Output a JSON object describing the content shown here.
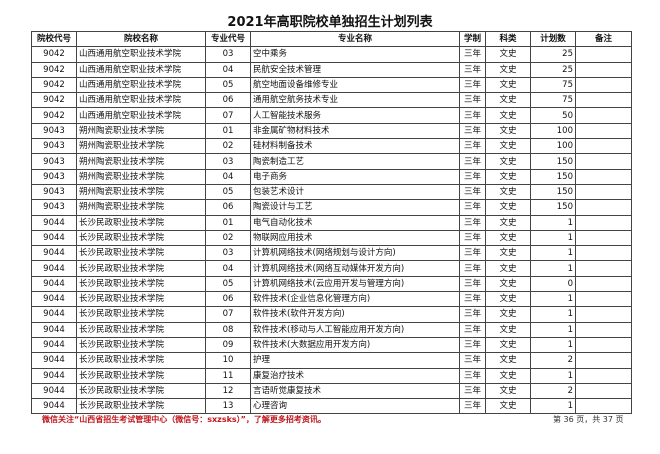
{
  "title": "2021年高职院校单独招生计划列表",
  "headers": [
    "院校代号",
    "院校名称",
    "专业代号",
    "专业名称",
    "学制",
    "科类",
    "计划数",
    "备注"
  ],
  "rows": [
    [
      "9042",
      "山西通用航空职业技术学院",
      "03",
      "空中乘务",
      "三年",
      "文史",
      "25",
      ""
    ],
    [
      "9042",
      "山西通用航空职业技术学院",
      "04",
      "民航安全技术管理",
      "三年",
      "文史",
      "25",
      ""
    ],
    [
      "9042",
      "山西通用航空职业技术学院",
      "05",
      "航空地面设备维修专业",
      "三年",
      "文史",
      "75",
      ""
    ],
    [
      "9042",
      "山西通用航空职业技术学院",
      "06",
      "通用航空航务技术专业",
      "三年",
      "文史",
      "75",
      ""
    ],
    [
      "9042",
      "山西通用航空职业技术学院",
      "07",
      "人工智能技术服务",
      "三年",
      "文史",
      "50",
      ""
    ],
    [
      "9043",
      "朔州陶瓷职业技术学院",
      "01",
      "非金属矿物材料技术",
      "三年",
      "文史",
      "100",
      ""
    ],
    [
      "9043",
      "朔州陶瓷职业技术学院",
      "02",
      "硅材料制备技术",
      "三年",
      "文史",
      "100",
      ""
    ],
    [
      "9043",
      "朔州陶瓷职业技术学院",
      "03",
      "陶瓷制造工艺",
      "三年",
      "文史",
      "150",
      ""
    ],
    [
      "9043",
      "朔州陶瓷职业技术学院",
      "04",
      "电子商务",
      "三年",
      "文史",
      "150",
      ""
    ],
    [
      "9043",
      "朔州陶瓷职业技术学院",
      "05",
      "包装艺术设计",
      "三年",
      "文史",
      "150",
      ""
    ],
    [
      "9043",
      "朔州陶瓷职业技术学院",
      "06",
      "陶瓷设计与工艺",
      "三年",
      "文史",
      "150",
      ""
    ],
    [
      "9044",
      "长沙民政职业技术学院",
      "01",
      "电气自动化技术",
      "三年",
      "文史",
      "1",
      ""
    ],
    [
      "9044",
      "长沙民政职业技术学院",
      "02",
      "物联网应用技术",
      "三年",
      "文史",
      "1",
      ""
    ],
    [
      "9044",
      "长沙民政职业技术学院",
      "03",
      "计算机网络技术(网络规划与设计方向)",
      "三年",
      "文史",
      "1",
      ""
    ],
    [
      "9044",
      "长沙民政职业技术学院",
      "04",
      "计算机网络技术(网络互动媒体开发方向)",
      "三年",
      "文史",
      "1",
      ""
    ],
    [
      "9044",
      "长沙民政职业技术学院",
      "05",
      "计算机网络技术(云应用开发与管理方向)",
      "三年",
      "文史",
      "0",
      ""
    ],
    [
      "9044",
      "长沙民政职业技术学院",
      "06",
      "软件技术(企业信息化管理方向)",
      "三年",
      "文史",
      "1",
      ""
    ],
    [
      "9044",
      "长沙民政职业技术学院",
      "07",
      "软件技术(软件开发方向)",
      "三年",
      "文史",
      "1",
      ""
    ],
    [
      "9044",
      "长沙民政职业技术学院",
      "08",
      "软件技术(移动与人工智能应用开发方向)",
      "三年",
      "文史",
      "1",
      ""
    ],
    [
      "9044",
      "长沙民政职业技术学院",
      "09",
      "软件技术(大数据应用开发方向)",
      "三年",
      "文史",
      "1",
      ""
    ],
    [
      "9044",
      "长沙民政职业技术学院",
      "10",
      "护理",
      "三年",
      "文史",
      "2",
      ""
    ],
    [
      "9044",
      "长沙民政职业技术学院",
      "11",
      "康复治疗技术",
      "三年",
      "文史",
      "1",
      ""
    ],
    [
      "9044",
      "长沙民政职业技术学院",
      "12",
      "言语听觉康复技术",
      "三年",
      "文史",
      "2",
      ""
    ],
    [
      "9044",
      "长沙民政职业技术学院",
      "13",
      "心理咨询",
      "三年",
      "文史",
      "1",
      ""
    ]
  ],
  "footer_note": "微信关注“山西省招生考试管理中心（微信号：sxzsks）”，了解更多招考资讯。",
  "page_info": "第 36 页，共 37 页"
}
